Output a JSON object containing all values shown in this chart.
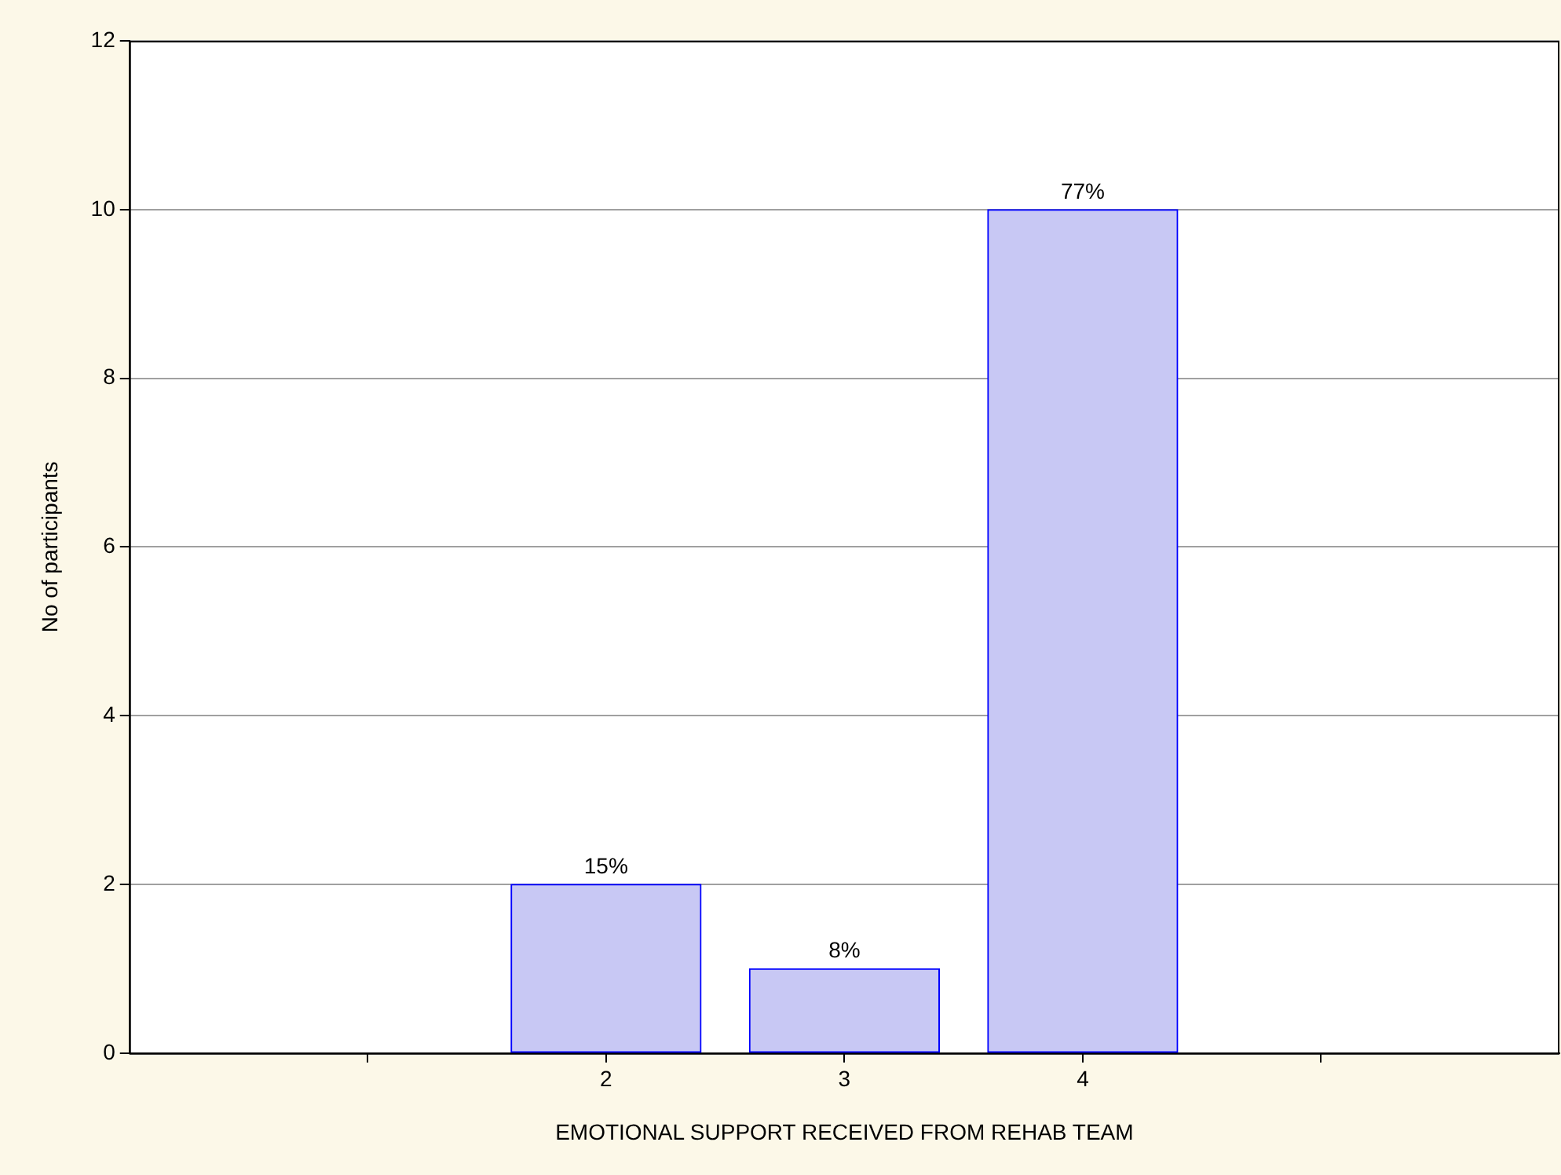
{
  "chart_data": {
    "type": "bar",
    "xlabel": "EMOTIONAL SUPPORT RECEIVED FROM REHAB TEAM",
    "ylabel": "No of participants",
    "x": [
      2,
      3,
      4
    ],
    "values": [
      2,
      1,
      10
    ],
    "color": "#c8c8f4",
    "annotations": [
      {
        "text": "15%",
        "x": 2,
        "y": 2
      },
      {
        "text": "8%",
        "x": 3,
        "y": 1
      },
      {
        "text": "77%",
        "x": 4,
        "y": 10
      }
    ],
    "xlim": [
      0,
      6
    ],
    "xticks": [
      {
        "value": 1,
        "label": null
      },
      2,
      3,
      4,
      {
        "value": 5,
        "label": null
      }
    ],
    "ylim": [
      0,
      12
    ],
    "yticks": [
      0,
      2,
      4,
      6,
      8,
      10,
      12
    ],
    "grid": "y",
    "legend": false
  }
}
